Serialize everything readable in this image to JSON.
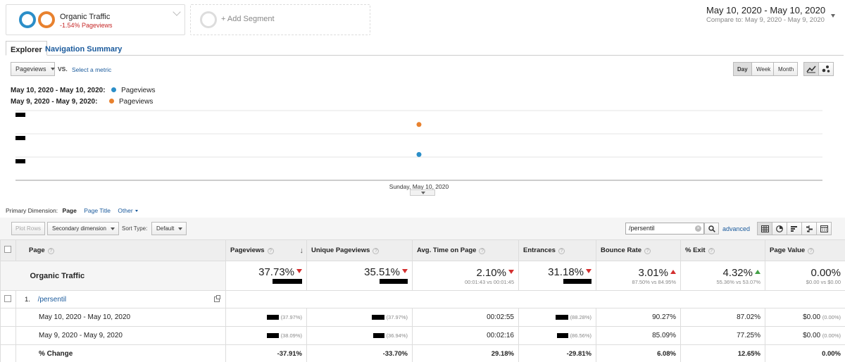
{
  "segments": {
    "active": {
      "name": "Organic Traffic",
      "change": "-1.54% Pageviews"
    },
    "add_label": "+ Add Segment"
  },
  "date_range": {
    "primary": "May 10, 2020 - May 10, 2020",
    "compare_label": "Compare to:",
    "compare": "May 9, 2020 - May 9, 2020"
  },
  "tabs": [
    {
      "label": "Explorer"
    },
    {
      "label": "Navigation Summary"
    }
  ],
  "metric": {
    "selected": "Pageviews",
    "vs": "VS.",
    "select_label": "Select a metric"
  },
  "granularity": [
    "Day",
    "Week",
    "Month"
  ],
  "legend": [
    {
      "range": "May 10, 2020 - May 10, 2020:",
      "metric": "Pageviews",
      "color": "#2b8ec8"
    },
    {
      "range": "May 9, 2020 - May 9, 2020:",
      "metric": "Pageviews",
      "color": "#e8812e"
    }
  ],
  "chart_data": {
    "type": "scatter",
    "x_label": "Sunday, May 10, 2020",
    "series": [
      {
        "name": "May 10, 2020 - May 10, 2020",
        "color": "#2b8ec8",
        "level": 0.37
      },
      {
        "name": "May 9, 2020 - May 9, 2020",
        "color": "#e8812e",
        "level": 0.8
      }
    ]
  },
  "dimension": {
    "label": "Primary Dimension:",
    "current": "Page",
    "other1": "Page Title",
    "other2": "Other"
  },
  "toolbar": {
    "plot_rows": "Plot Rows",
    "secondary": "Secondary dimension",
    "sort_label": "Sort Type:",
    "sort_value": "Default",
    "search_value": "/persentil",
    "advanced": "advanced"
  },
  "table": {
    "headers": [
      "Page",
      "Pageviews",
      "Unique Pageviews",
      "Avg. Time on Page",
      "Entrances",
      "Bounce Rate",
      "% Exit",
      "Page Value"
    ],
    "summary": {
      "label": "Organic Traffic",
      "pageviews": "37.73%",
      "unique": "35.51%",
      "avg_time": "2.10%",
      "avg_time_sub": "00:01:43 vs 00:01:45",
      "entrances": "31.18%",
      "bounce": "3.01%",
      "bounce_sub": "87.50% vs 84.95%",
      "exit": "4.32%",
      "exit_sub": "55.36% vs 53.07%",
      "value": "0.00%",
      "value_sub": "$0.00 vs $0.00"
    },
    "row1": {
      "num": "1.",
      "page": "/persentil"
    },
    "row_a": {
      "label": "May 10, 2020 - May 10, 2020",
      "pv_pct": "(37.97%)",
      "up_pct": "(37.97%)",
      "time": "00:02:55",
      "ent_pct": "(88.28%)",
      "bounce": "90.27%",
      "exit": "87.02%",
      "value": "$0.00",
      "value_pct": "(0.00%)"
    },
    "row_b": {
      "label": "May 9, 2020 - May 9, 2020",
      "pv_pct": "(38.09%)",
      "up_pct": "(36.94%)",
      "time": "00:02:16",
      "ent_pct": "(86.56%)",
      "bounce": "85.09%",
      "exit": "77.25%",
      "value": "$0.00",
      "value_pct": "(0.00%)"
    },
    "change": {
      "label": "% Change",
      "pv": "-37.91%",
      "up": "-33.70%",
      "time": "29.18%",
      "ent": "-29.81%",
      "bounce": "6.08%",
      "exit": "12.65%",
      "value": "0.00%"
    }
  }
}
